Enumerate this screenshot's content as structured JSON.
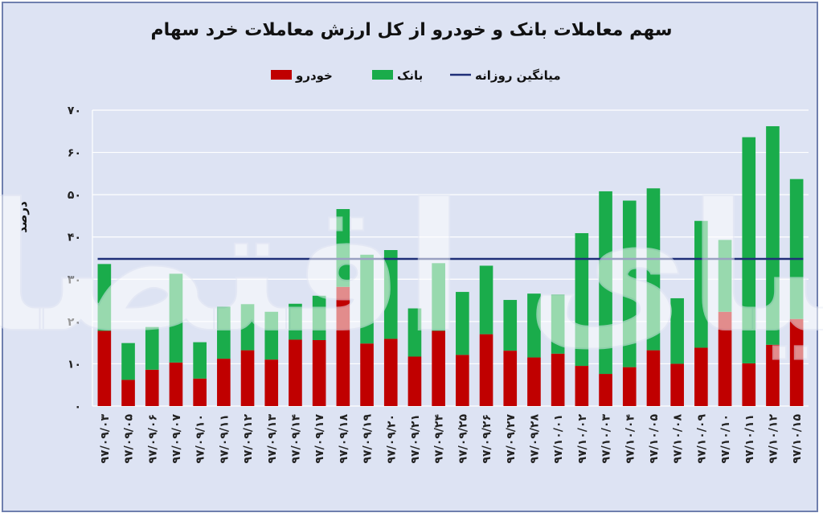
{
  "chart_data": {
    "type": "bar",
    "stacked": true,
    "title": "سهم معاملات بانک و خودرو از کل ارزش معاملات خرد سهام",
    "ylabel": "درصد",
    "xlabel": "",
    "ylim": [
      0,
      70
    ],
    "yticks": [
      "۰",
      "۱۰",
      "۲۰",
      "۳۰",
      "۴۰",
      "۵۰",
      "۶۰",
      "۷۰"
    ],
    "grid": true,
    "legend_position": "top",
    "categories": [
      "۹۷/۰۹/۰۳",
      "۹۷/۰۹/۰۵",
      "۹۷/۰۹/۰۶",
      "۹۷/۰۹/۰۷",
      "۹۷/۰۹/۱۰",
      "۹۷/۰۹/۱۱",
      "۹۷/۰۹/۱۲",
      "۹۷/۰۹/۱۳",
      "۹۷/۰۹/۱۴",
      "۹۷/۰۹/۱۷",
      "۹۷/۰۹/۱۸",
      "۹۷/۰۹/۱۹",
      "۹۷/۰۹/۲۰",
      "۹۷/۰۹/۲۱",
      "۹۷/۰۹/۲۴",
      "۹۷/۰۹/۲۵",
      "۹۷/۰۹/۲۶",
      "۹۷/۰۹/۲۷",
      "۹۷/۰۹/۲۸",
      "۹۷/۱۰/۰۱",
      "۹۷/۱۰/۰۲",
      "۹۷/۱۰/۰۳",
      "۹۷/۱۰/۰۴",
      "۹۷/۱۰/۰۵",
      "۹۷/۱۰/۰۸",
      "۹۷/۱۰/۰۹",
      "۹۷/۱۰/۱۰",
      "۹۷/۱۰/۱۱",
      "۹۷/۱۰/۱۲",
      "۹۷/۱۰/۱۵"
    ],
    "series": [
      {
        "name": "خودرو",
        "color": "#c00000",
        "values": [
          17.8,
          6.2,
          8.6,
          10.3,
          6.5,
          11.2,
          13.2,
          11.0,
          15.7,
          15.6,
          28.2,
          14.8,
          15.9,
          11.7,
          17.8,
          12.1,
          17.0,
          13.1,
          11.5,
          12.4,
          9.5,
          7.6,
          9.2,
          13.2,
          10.0,
          13.8,
          22.3,
          10.1,
          14.5,
          20.6
        ]
      },
      {
        "name": "بانک",
        "color": "#1aac4b",
        "values": [
          15.8,
          8.7,
          10.1,
          21.0,
          8.6,
          12.3,
          10.9,
          11.3,
          8.5,
          10.5,
          18.4,
          21.0,
          21.0,
          11.4,
          16.0,
          14.9,
          16.2,
          12.0,
          15.1,
          14.0,
          31.4,
          43.2,
          39.4,
          38.3,
          15.5,
          30.0,
          17.0,
          53.5,
          51.7,
          33.1
        ]
      }
    ],
    "reference_line": {
      "name": "میانگین روزانه",
      "color": "#1f2f78",
      "value": 34.8
    },
    "watermark": "دنیای اقتصاد"
  }
}
